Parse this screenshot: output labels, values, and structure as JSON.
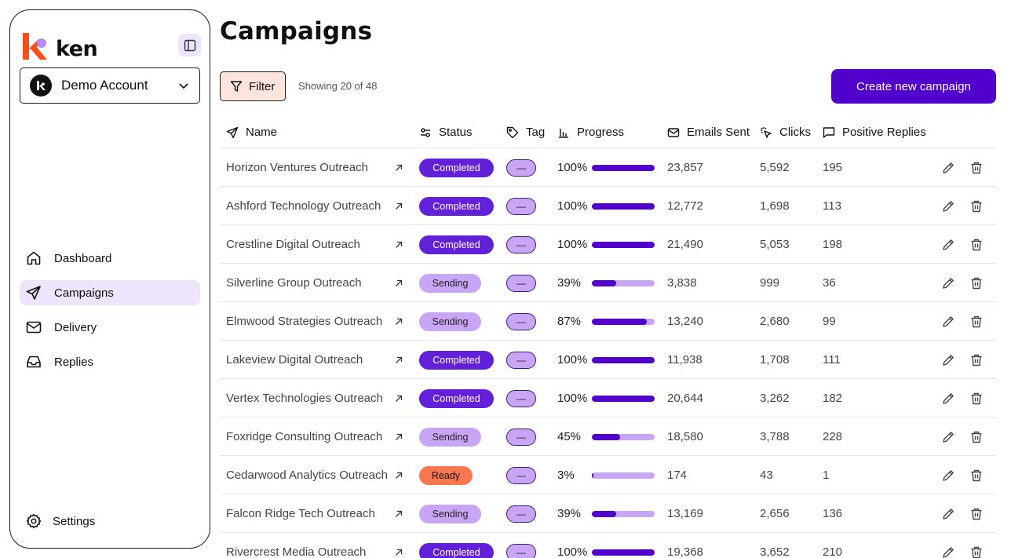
{
  "app": {
    "logo_text": "ken",
    "account_name": "Demo Account"
  },
  "nav": {
    "items": [
      {
        "label": "Dashboard",
        "icon": "home-icon",
        "active": false
      },
      {
        "label": "Campaigns",
        "icon": "send-icon",
        "active": true
      },
      {
        "label": "Delivery",
        "icon": "mail-icon",
        "active": false
      },
      {
        "label": "Replies",
        "icon": "inbox-icon",
        "active": false
      }
    ],
    "settings_label": "Settings"
  },
  "page": {
    "title": "Campaigns",
    "filter_label": "Filter",
    "showing_text": "Showing 20 of 48",
    "create_label": "Create new campaign"
  },
  "table": {
    "headers": {
      "name": "Name",
      "status": "Status",
      "tag": "Tag",
      "progress": "Progress",
      "emails_sent": "Emails Sent",
      "clicks": "Clicks",
      "positive_replies": "Positive Replies"
    },
    "rows": [
      {
        "name": "Horizon Ventures Outreach",
        "status": "Completed",
        "tag": "—",
        "progress": "100%",
        "progress_value": 1.0,
        "emails_sent": "23,857",
        "clicks": "5,592",
        "replies": "195"
      },
      {
        "name": "Ashford Technology Outreach",
        "status": "Completed",
        "tag": "—",
        "progress": "100%",
        "progress_value": 1.0,
        "emails_sent": "12,772",
        "clicks": "1,698",
        "replies": "113"
      },
      {
        "name": "Crestline Digital Outreach",
        "status": "Completed",
        "tag": "—",
        "progress": "100%",
        "progress_value": 1.0,
        "emails_sent": "21,490",
        "clicks": "5,053",
        "replies": "198"
      },
      {
        "name": "Silverline Group Outreach",
        "status": "Sending",
        "tag": "—",
        "progress": "39%",
        "progress_value": 0.39,
        "emails_sent": "3,838",
        "clicks": "999",
        "replies": "36"
      },
      {
        "name": "Elmwood Strategies Outreach",
        "status": "Sending",
        "tag": "—",
        "progress": "87%",
        "progress_value": 0.87,
        "emails_sent": "13,240",
        "clicks": "2,680",
        "replies": "99"
      },
      {
        "name": "Lakeview Digital Outreach",
        "status": "Completed",
        "tag": "—",
        "progress": "100%",
        "progress_value": 1.0,
        "emails_sent": "11,938",
        "clicks": "1,708",
        "replies": "111"
      },
      {
        "name": "Vertex Technologies Outreach",
        "status": "Completed",
        "tag": "—",
        "progress": "100%",
        "progress_value": 1.0,
        "emails_sent": "20,644",
        "clicks": "3,262",
        "replies": "182"
      },
      {
        "name": "Foxridge Consulting Outreach",
        "status": "Sending",
        "tag": "—",
        "progress": "45%",
        "progress_value": 0.45,
        "emails_sent": "18,580",
        "clicks": "3,788",
        "replies": "228"
      },
      {
        "name": "Cedarwood Analytics Outreach",
        "status": "Ready",
        "tag": "—",
        "progress": "3%",
        "progress_value": 0.03,
        "emails_sent": "174",
        "clicks": "43",
        "replies": "1"
      },
      {
        "name": "Falcon Ridge Tech Outreach",
        "status": "Sending",
        "tag": "—",
        "progress": "39%",
        "progress_value": 0.39,
        "emails_sent": "13,169",
        "clicks": "2,656",
        "replies": "136"
      },
      {
        "name": "Rivercrest Media Outreach",
        "status": "Completed",
        "tag": "—",
        "progress": "100%",
        "progress_value": 1.0,
        "emails_sent": "19,368",
        "clicks": "3,652",
        "replies": "210"
      }
    ]
  },
  "colors": {
    "brand_orange": "#ff4d1a",
    "brand_purple": "#b78cf2",
    "accent": "#5200cc",
    "completed": "#6220d8",
    "sending": "#c9a6f5",
    "ready": "#fb7750",
    "filter_bg": "#fde4dc",
    "active_nav_bg": "#eee5fc"
  }
}
